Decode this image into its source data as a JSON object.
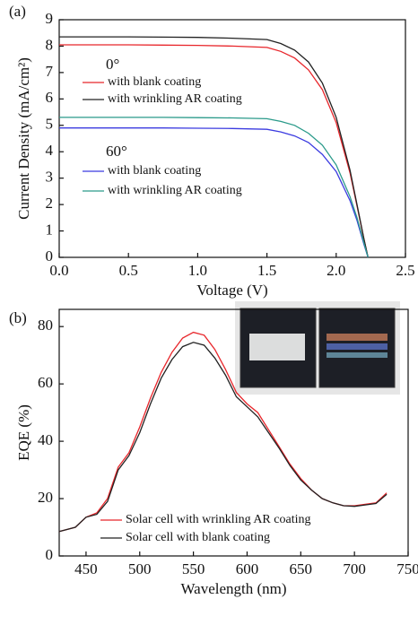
{
  "chart_data": [
    {
      "type": "line",
      "panel_label": "(a)",
      "xlabel": "Voltage (V)",
      "ylabel": "Current Density (mA/cm²)",
      "annotations": [
        "0°",
        "60°"
      ],
      "x": [
        0,
        0.25,
        0.5,
        0.75,
        1.0,
        1.25,
        1.5,
        1.6,
        1.7,
        1.8,
        1.9,
        2.0,
        2.1,
        2.15,
        2.2,
        2.23
      ],
      "series": [
        {
          "name": "with blank coating",
          "color": "#e8262b",
          "values": [
            8.05,
            8.05,
            8.05,
            8.04,
            8.03,
            8.0,
            7.95,
            7.8,
            7.55,
            7.1,
            6.35,
            5.1,
            3.2,
            1.95,
            0.7,
            0
          ]
        },
        {
          "name": "with wrinkling AR coating",
          "color": "#222222",
          "values": [
            8.35,
            8.35,
            8.35,
            8.34,
            8.33,
            8.3,
            8.25,
            8.1,
            7.85,
            7.4,
            6.6,
            5.3,
            3.3,
            2.0,
            0.7,
            0
          ]
        },
        {
          "name": "with blank coating",
          "color": "#3b3be0",
          "values": [
            4.9,
            4.9,
            4.9,
            4.9,
            4.89,
            4.88,
            4.85,
            4.75,
            4.6,
            4.35,
            3.9,
            3.25,
            2.15,
            1.4,
            0.5,
            0
          ]
        },
        {
          "name": "with wrinkling AR coating",
          "color": "#2a9a8a",
          "values": [
            5.3,
            5.3,
            5.3,
            5.3,
            5.29,
            5.28,
            5.25,
            5.15,
            5.0,
            4.7,
            4.25,
            3.5,
            2.3,
            1.5,
            0.55,
            0
          ]
        }
      ],
      "xlim": [
        0,
        2.5
      ],
      "ylim": [
        0,
        9
      ],
      "xticks": [
        {
          "value": 0,
          "label": "0.0"
        },
        {
          "value": 0.5,
          "label": "0.5"
        },
        {
          "value": 1,
          "label": "1.0"
        },
        {
          "value": 1.5,
          "label": "1.5"
        },
        {
          "value": 2,
          "label": "2.0"
        },
        {
          "value": 2.5,
          "label": "2.5"
        }
      ],
      "yticks": [
        0,
        1,
        2,
        3,
        4,
        5,
        6,
        7,
        8,
        9
      ],
      "grid": false
    },
    {
      "type": "line",
      "panel_label": "(b)",
      "xlabel": "Wavelength (nm)",
      "ylabel": "EQE (%)",
      "x": [
        425,
        440,
        450,
        460,
        470,
        480,
        490,
        500,
        510,
        520,
        530,
        540,
        550,
        560,
        570,
        580,
        590,
        600,
        610,
        620,
        630,
        640,
        650,
        660,
        670,
        680,
        690,
        700,
        710,
        720,
        730
      ],
      "series": [
        {
          "name": "Solar cell with wrinkling AR coating",
          "color": "#e8262b",
          "values": [
            8.5,
            10,
            13.5,
            15,
            20,
            31,
            36,
            45,
            55,
            64,
            71,
            76,
            78,
            77,
            72,
            65,
            57,
            53,
            50,
            44,
            38,
            32,
            27,
            23,
            20,
            18.5,
            17.5,
            17.5,
            18,
            18.5,
            22
          ]
        },
        {
          "name": "Solar cell with blank coating",
          "color": "#222222",
          "values": [
            8.5,
            10,
            13.5,
            14.5,
            19,
            30,
            35,
            43,
            53,
            62,
            68.5,
            73,
            74.5,
            73.5,
            69,
            63,
            55.5,
            52,
            48.5,
            43,
            37.5,
            31.5,
            26.5,
            23,
            20,
            18.5,
            17.5,
            17.3,
            17.8,
            18.3,
            21.5
          ]
        }
      ],
      "xlim": [
        425,
        750
      ],
      "ylim": [
        0,
        86
      ],
      "xticks": [
        450,
        500,
        550,
        600,
        650,
        700,
        750
      ],
      "yticks": [
        0,
        20,
        40,
        60,
        80
      ],
      "grid": false
    }
  ]
}
